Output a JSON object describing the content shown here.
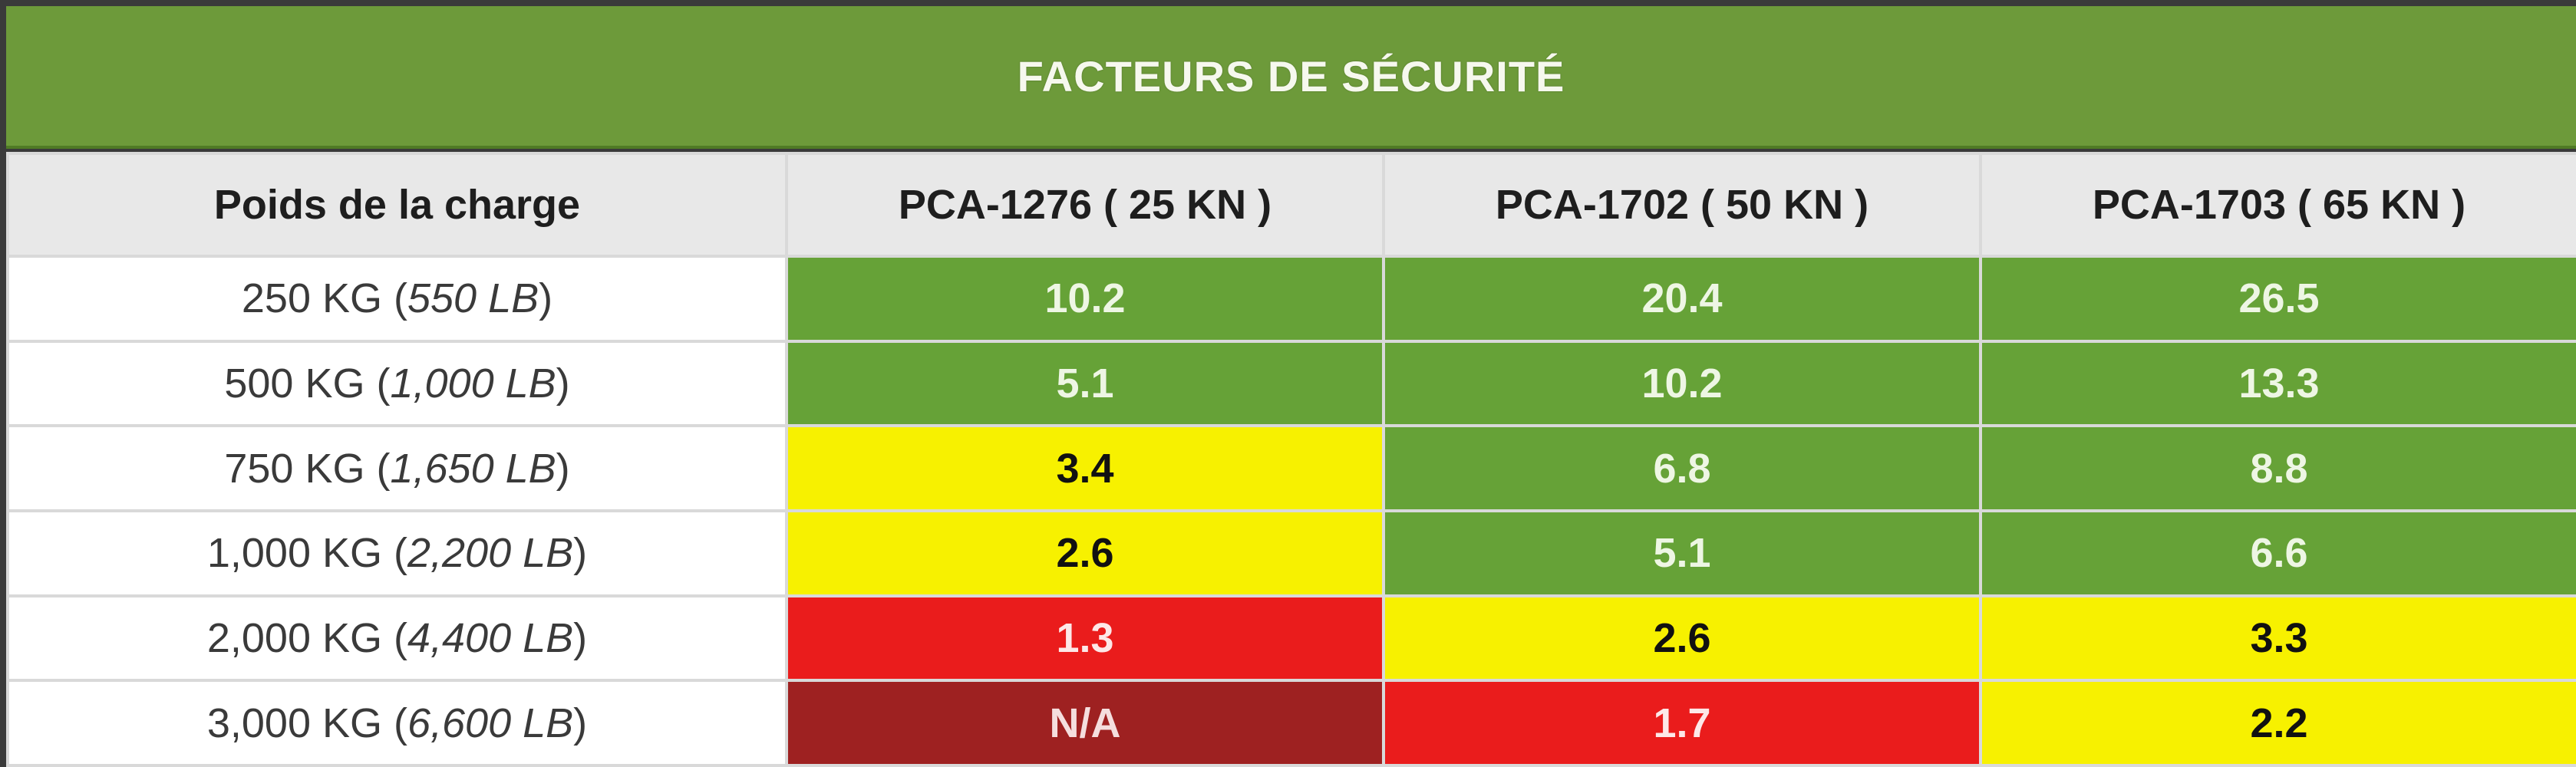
{
  "title": "FACTEURS DE SÉCURITÉ",
  "columns": [
    "Poids de la charge",
    "PCA-1276 ( 25 KN )",
    "PCA-1702 ( 50 KN )",
    "PCA-1703 ( 65 KN )"
  ],
  "colors": {
    "header_green": "#6d9a3a",
    "safe_green": "#66a237",
    "caution_yellow": "#f7f100",
    "danger_red": "#ea1c1c",
    "not_applicable_dark_red": "#9e2121"
  },
  "rows": [
    {
      "kg": "250 KG (",
      "lb": "550 LB",
      "close": ")",
      "values": [
        "10.2",
        "20.4",
        "26.5"
      ],
      "levels": [
        "green",
        "green",
        "green"
      ]
    },
    {
      "kg": "500 KG (",
      "lb": "1,000 LB",
      "close": ")",
      "values": [
        "5.1",
        "10.2",
        "13.3"
      ],
      "levels": [
        "green",
        "green",
        "green"
      ]
    },
    {
      "kg": "750 KG (",
      "lb": "1,650 LB",
      "close": ")",
      "values": [
        "3.4",
        "6.8",
        "8.8"
      ],
      "levels": [
        "yellow",
        "green",
        "green"
      ]
    },
    {
      "kg": "1,000 KG (",
      "lb": "2,200 LB",
      "close": ")",
      "values": [
        "2.6",
        "5.1",
        "6.6"
      ],
      "levels": [
        "yellow",
        "green",
        "green"
      ]
    },
    {
      "kg": "2,000 KG (",
      "lb": "4,400 LB",
      "close": ")",
      "values": [
        "1.3",
        "2.6",
        "3.3"
      ],
      "levels": [
        "red",
        "yellow",
        "yellow"
      ]
    },
    {
      "kg": "3,000 KG (",
      "lb": "6,600 LB",
      "close": ")",
      "values": [
        "N/A",
        "1.7",
        "2.2"
      ],
      "levels": [
        "darkred",
        "red",
        "yellow"
      ]
    }
  ]
}
